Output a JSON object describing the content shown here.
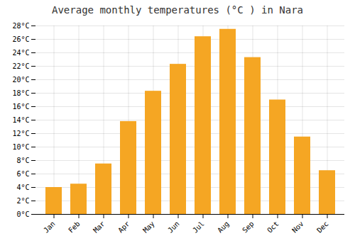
{
  "chart_data": {
    "type": "bar",
    "title": "Average monthly temperatures (°C ) in Nara",
    "categories": [
      "Jan",
      "Feb",
      "Mar",
      "Apr",
      "May",
      "Jun",
      "Jul",
      "Aug",
      "Sep",
      "Oct",
      "Nov",
      "Dec"
    ],
    "values": [
      4.0,
      4.5,
      7.5,
      13.8,
      18.3,
      22.3,
      26.4,
      27.5,
      23.3,
      17.0,
      11.5,
      6.5
    ],
    "color": "#F5A623",
    "ylim": [
      0,
      28
    ],
    "yticks": [
      {
        "value": 0,
        "label": "0°C"
      },
      {
        "value": 2,
        "label": "2°C"
      },
      {
        "value": 4,
        "label": "4°C"
      },
      {
        "value": 6,
        "label": "6°C"
      },
      {
        "value": 8,
        "label": "8°C"
      },
      {
        "value": 10,
        "label": "10°C"
      },
      {
        "value": 12,
        "label": "12°C"
      },
      {
        "value": 14,
        "label": "14°C"
      },
      {
        "value": 16,
        "label": "16°C"
      },
      {
        "value": 18,
        "label": "18°C"
      },
      {
        "value": 20,
        "label": "20°C"
      },
      {
        "value": 22,
        "label": "22°C"
      },
      {
        "value": 24,
        "label": "24°C"
      },
      {
        "value": 26,
        "label": "26°C"
      },
      {
        "value": 28,
        "label": "28°C"
      }
    ],
    "grid": true
  }
}
